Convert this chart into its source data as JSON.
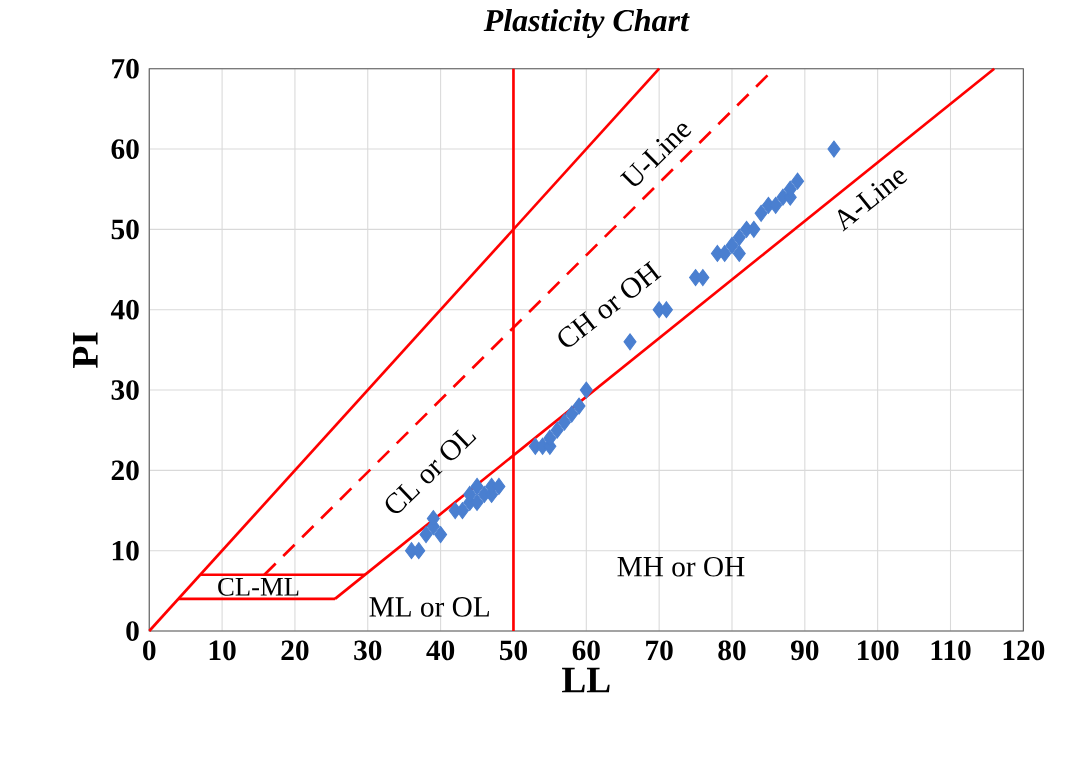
{
  "chart_data": {
    "type": "scatter",
    "title": "Plasticity Chart",
    "xlabel": "LL",
    "ylabel": "PI",
    "xlim": [
      0,
      120
    ],
    "ylim": [
      0,
      70
    ],
    "xticks": [
      0,
      10,
      20,
      30,
      40,
      50,
      60,
      70,
      80,
      90,
      100,
      110,
      120
    ],
    "yticks": [
      0,
      10,
      20,
      30,
      40,
      50,
      60,
      70
    ],
    "grid": true,
    "series": [
      {
        "marker": "diamond",
        "color": "#4a7fd0",
        "x": [
          36,
          37,
          38,
          39,
          39,
          40,
          42,
          43,
          44,
          44,
          45,
          45,
          46,
          47,
          47,
          48,
          53,
          54,
          55,
          55,
          56,
          57,
          58,
          59,
          60,
          66,
          70,
          71,
          75,
          76,
          78,
          79,
          80,
          81,
          81,
          82,
          83,
          84,
          85,
          86,
          87,
          88,
          88,
          89,
          94
        ],
        "values": [
          10,
          10,
          12,
          13,
          14,
          12,
          15,
          15,
          16,
          17,
          16,
          18,
          17,
          17,
          18,
          18,
          23,
          23,
          23,
          24,
          25,
          26,
          27,
          28,
          30,
          36,
          40,
          40,
          44,
          44,
          47,
          47,
          48,
          47,
          49,
          50,
          50,
          52,
          53,
          53,
          54,
          54,
          55,
          56,
          60
        ]
      },
      {
        "type": "line",
        "name": "A-Line",
        "color": "#ff0000",
        "line_style": "solid",
        "marker": "none",
        "x": [
          25.5,
          116
        ],
        "values": [
          4,
          70
        ]
      },
      {
        "type": "line",
        "name": "U-Line",
        "color": "#ff0000",
        "line_style": "dashed",
        "marker": "none",
        "x": [
          15.8,
          85.8
        ],
        "values": [
          7,
          70
        ]
      },
      {
        "type": "line",
        "color": "#ff0000",
        "line_style": "solid",
        "marker": "none",
        "x": [
          0,
          70
        ],
        "values": [
          0,
          70
        ]
      },
      {
        "type": "line",
        "color": "#ff0000",
        "line_style": "solid",
        "marker": "none",
        "x": [
          50,
          50
        ],
        "values": [
          0,
          70
        ]
      },
      {
        "type": "line",
        "color": "#ff0000",
        "line_style": "solid",
        "marker": "none",
        "x": [
          7,
          29.6
        ],
        "values": [
          7,
          7
        ]
      },
      {
        "type": "line",
        "color": "#ff0000",
        "line_style": "solid",
        "marker": "none",
        "x": [
          4,
          25.5
        ],
        "values": [
          4,
          4
        ]
      }
    ],
    "annotations": [
      "CL-ML",
      "ML or OL",
      "CL or OL",
      "CH or OH",
      "MH or OH"
    ]
  }
}
